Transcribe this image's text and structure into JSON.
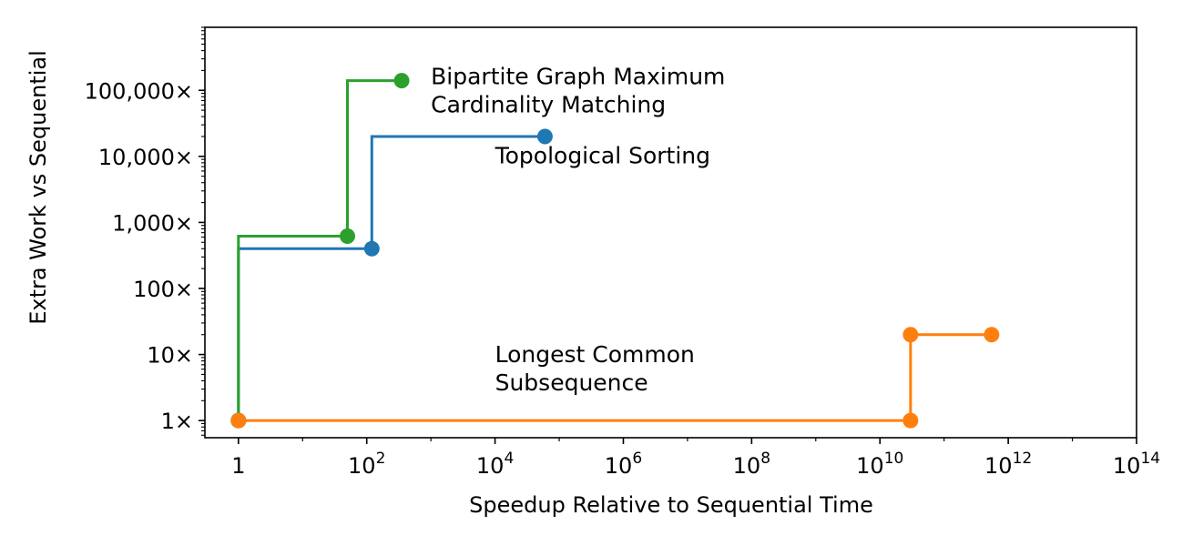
{
  "chart_data": {
    "type": "line",
    "title": "",
    "xlabel": "Speedup Relative to Sequential Time",
    "ylabel": "Extra Work vs Sequential",
    "xscale": "log",
    "yscale": "log",
    "xlim": [
      0.3,
      100000000000000
    ],
    "ylim": [
      0.55,
      900000
    ],
    "grid": false,
    "legend": "none (inline series labels)",
    "x_ticks": [
      {
        "value": 1,
        "label": "1"
      },
      {
        "value": 100,
        "base": "10",
        "exp": "2"
      },
      {
        "value": 10000,
        "base": "10",
        "exp": "4"
      },
      {
        "value": 1000000,
        "base": "10",
        "exp": "6"
      },
      {
        "value": 100000000,
        "base": "10",
        "exp": "8"
      },
      {
        "value": 10000000000,
        "base": "10",
        "exp": "10"
      },
      {
        "value": 1000000000000,
        "base": "10",
        "exp": "12"
      },
      {
        "value": 100000000000000,
        "base": "10",
        "exp": "14"
      }
    ],
    "y_ticks": [
      {
        "value": 1,
        "label": "1×"
      },
      {
        "value": 10,
        "label": "10×"
      },
      {
        "value": 100,
        "label": "100×"
      },
      {
        "value": 1000,
        "label": "1,000×"
      },
      {
        "value": 10000,
        "label": "10,000×"
      },
      {
        "value": 100000,
        "label": "100,000×"
      }
    ],
    "series": [
      {
        "name": "Topological Sorting",
        "label_lines": [
          "Topological Sorting"
        ],
        "color": "#1f77b4",
        "points": [
          [
            1,
            1
          ],
          [
            120,
            400
          ],
          [
            60000,
            20000
          ]
        ]
      },
      {
        "name": "Bipartite Graph Maximum Cardinality Matching",
        "label_lines": [
          "Bipartite Graph Maximum",
          "Cardinality Matching"
        ],
        "color": "#2ca02c",
        "points": [
          [
            1,
            1
          ],
          [
            50,
            620
          ],
          [
            350,
            140000
          ]
        ]
      },
      {
        "name": "Longest Common Subsequence",
        "label_lines": [
          "Longest Common",
          "Subsequence"
        ],
        "color": "#ff7f0e",
        "points": [
          [
            1,
            1
          ],
          [
            30000000000,
            1
          ],
          [
            30000000000,
            20
          ],
          [
            550000000000,
            20
          ]
        ]
      }
    ]
  }
}
